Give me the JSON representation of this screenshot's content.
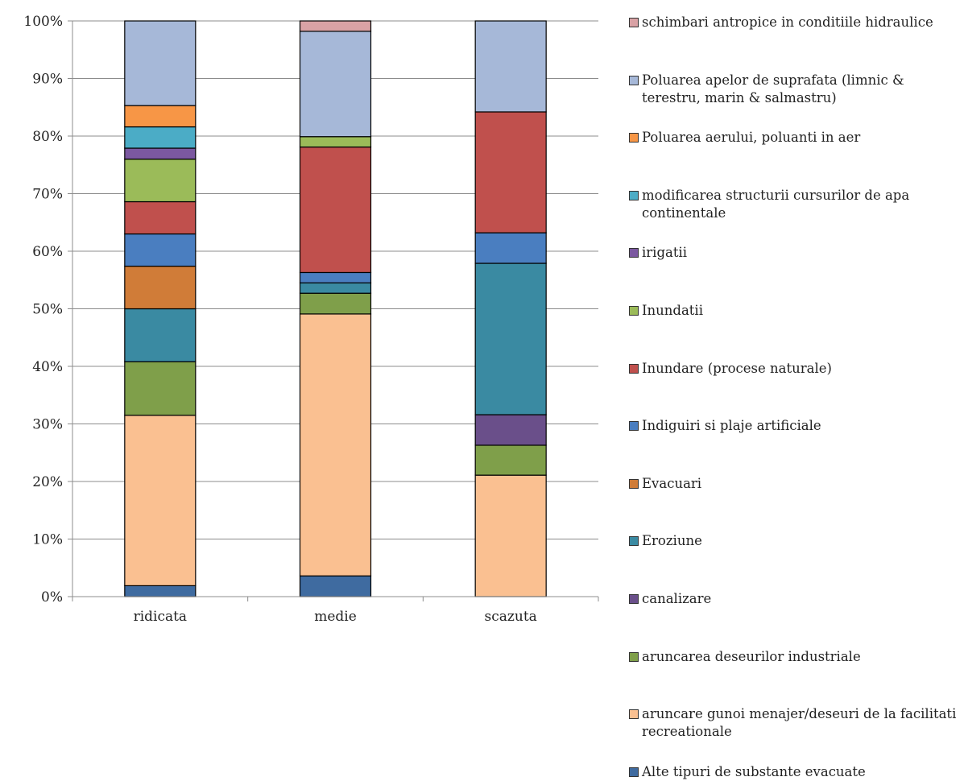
{
  "chart_data": {
    "type": "bar",
    "stacked": true,
    "percent": true,
    "title": "",
    "xlabel": "",
    "ylabel": "",
    "ylim": [
      0,
      100
    ],
    "yticks": [
      "0%",
      "10%",
      "20%",
      "30%",
      "40%",
      "50%",
      "60%",
      "70%",
      "80%",
      "90%",
      "100%"
    ],
    "grid": true,
    "legend_position": "right",
    "categories": [
      "ridicata",
      "medie",
      "scazuta"
    ],
    "series": [
      {
        "name": "Alte tipuri de substante evacuate",
        "color": "#3f6ba0",
        "values": [
          1.9,
          3.6,
          0
        ]
      },
      {
        "name": "aruncare gunoi menajer/deseuri de la facilitati recreationale",
        "color": "#fac091",
        "values": [
          29.6,
          45.5,
          21.1
        ]
      },
      {
        "name": "aruncarea deseurilor industriale",
        "color": "#7f9f4a",
        "values": [
          9.3,
          3.6,
          5.2
        ]
      },
      {
        "name": "canalizare",
        "color": "#6a4f8a",
        "values": [
          0,
          0,
          5.3
        ]
      },
      {
        "name": "Eroziune",
        "color": "#3a8aa2",
        "values": [
          9.2,
          1.8,
          26.3
        ]
      },
      {
        "name": "Evacuari",
        "color": "#d07c38",
        "values": [
          7.4,
          0,
          0
        ]
      },
      {
        "name": "Indiguiri si plaje artificiale",
        "color": "#4a7ec0",
        "values": [
          5.6,
          1.8,
          5.3
        ]
      },
      {
        "name": "Inundare (procese naturale)",
        "color": "#c0504d",
        "values": [
          5.6,
          21.8,
          21.0
        ]
      },
      {
        "name": "Inundatii",
        "color": "#9bbb59",
        "values": [
          7.4,
          1.8,
          0
        ]
      },
      {
        "name": "irigatii",
        "color": "#7b58a0",
        "values": [
          1.9,
          0,
          0
        ]
      },
      {
        "name": "modificarea structurii cursurilor de apa continentale",
        "color": "#4bacc6",
        "values": [
          3.7,
          0,
          0
        ]
      },
      {
        "name": "Poluarea aerului, poluanti in aer",
        "color": "#f79646",
        "values": [
          3.7,
          0,
          0
        ]
      },
      {
        "name": "Poluarea apelor de suprafata (limnic & terestru, marin & salmastru)",
        "color": "#a6b8d8",
        "values": [
          14.7,
          18.3,
          15.8
        ]
      },
      {
        "name": "schimbari antropice in conditiile hidraulice",
        "color": "#d9a2a5",
        "values": [
          0,
          1.8,
          0
        ]
      }
    ]
  }
}
